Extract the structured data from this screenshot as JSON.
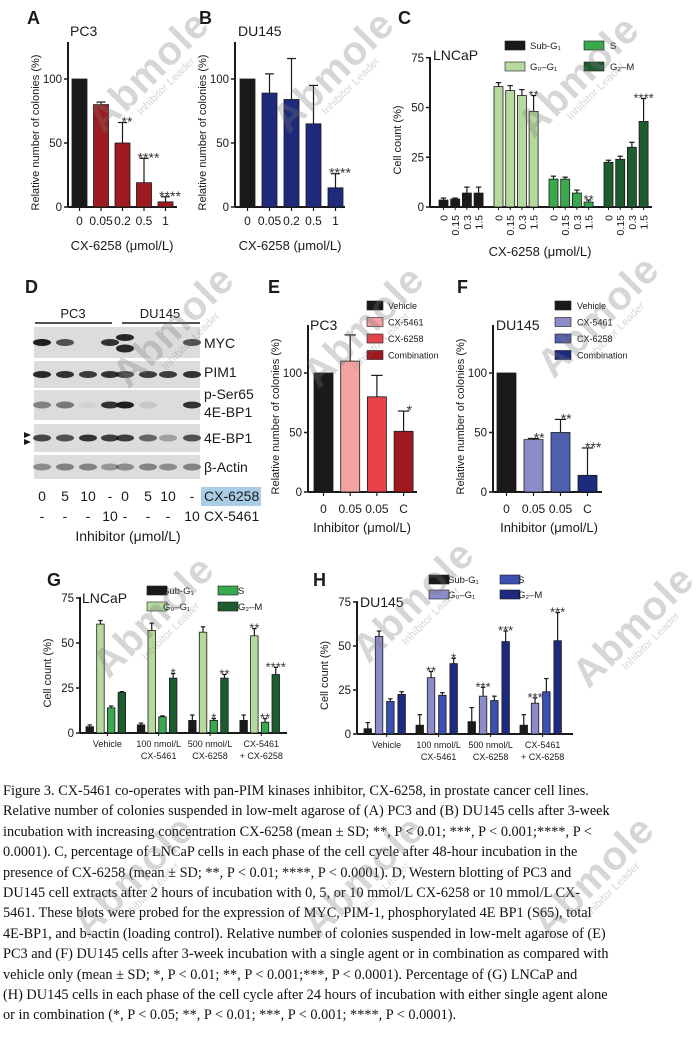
{
  "panel_letters": [
    "A",
    "B",
    "C",
    "D",
    "E",
    "F",
    "G",
    "H"
  ],
  "chart_data": [
    {
      "panel": "A",
      "type": "bar",
      "title": "PC3",
      "categories": [
        "0",
        "0.05",
        "0.2",
        "0.5",
        "1"
      ],
      "values": [
        100,
        80,
        50,
        19,
        4
      ],
      "errors": [
        0,
        2,
        16,
        19,
        4
      ],
      "colors": [
        "#1a1a1a",
        "#9e1b1f",
        "#9e1b1f",
        "#9e1b1f",
        "#9e1b1f"
      ],
      "significance": [
        "",
        "",
        "**",
        "****",
        "****"
      ],
      "ylabel": "Relative number of colonies (%)",
      "xlabel": "CX-6258 (μmol/L)",
      "yticks": [
        "0",
        "50",
        "100"
      ],
      "ylim": [
        0,
        130
      ]
    },
    {
      "panel": "B",
      "type": "bar",
      "title": "DU145",
      "categories": [
        "0",
        "0.05",
        "0.2",
        "0.5",
        "1"
      ],
      "values": [
        100,
        89,
        84,
        65,
        15
      ],
      "errors": [
        0,
        15,
        32,
        30,
        11
      ],
      "colors": [
        "#1a1a1a",
        "#1f2a7c",
        "#1f2a7c",
        "#1f2a7c",
        "#1f2a7c"
      ],
      "significance": [
        "",
        "",
        "",
        "",
        "****"
      ],
      "ylabel": "Relative number of colonies (%)",
      "xlabel": "CX-6258 (μmol/L)",
      "yticks": [
        "0",
        "50",
        "100"
      ],
      "ylim": [
        0,
        130
      ]
    },
    {
      "panel": "C",
      "type": "bar",
      "title": "LNCaP",
      "categories": [
        "0",
        "0.15",
        "0.3",
        "1.5"
      ],
      "series": [
        {
          "name": "Sub-G₁",
          "color": "#1a1a1a",
          "values": [
            3.5,
            4,
            7,
            7
          ],
          "errors": [
            1,
            0.5,
            3,
            3
          ],
          "significance": [
            "",
            "",
            "",
            ""
          ]
        },
        {
          "name": "G₀–G₁",
          "color": "#b6da9e",
          "values": [
            60.5,
            58.5,
            56,
            48
          ],
          "errors": [
            2,
            2.5,
            3,
            8
          ],
          "significance": [
            "",
            "",
            "",
            "**"
          ]
        },
        {
          "name": "S",
          "color": "#3aa84c",
          "values": [
            14,
            14,
            7,
            2.5
          ],
          "errors": [
            1.5,
            1,
            1.5,
            1
          ],
          "significance": [
            "",
            "",
            "",
            "**"
          ]
        },
        {
          "name": "G₂–M",
          "color": "#1d5c2e",
          "values": [
            22.5,
            24,
            30,
            43
          ],
          "errors": [
            1,
            1.5,
            2.5,
            11.5
          ],
          "significance": [
            "",
            "",
            "",
            "****"
          ]
        }
      ],
      "ylabel": "Cell count (%)",
      "xlabel": "CX-6258 (μmol/L)",
      "yticks": [
        "0",
        "25",
        "50",
        "75"
      ],
      "ylim": [
        0,
        75
      ]
    },
    {
      "panel": "E",
      "type": "bar",
      "title": "PC3",
      "categories": [
        "0",
        "0.05",
        "0.05",
        "C"
      ],
      "values": [
        100,
        110,
        80,
        51
      ],
      "errors": [
        0,
        22,
        18,
        17
      ],
      "colors": [
        "#1a1a1a",
        "#f4a3a3",
        "#e8424b",
        "#a0191f"
      ],
      "significance": [
        "",
        "",
        "",
        "*"
      ],
      "legend": [
        "Vehicle",
        "CX-5461",
        "CX-6258",
        "Combination"
      ],
      "ylabel": "Relative number of colonies (%)",
      "xlabel": "Inhibitor (μmol/L)",
      "yticks": [
        "0",
        "50",
        "100"
      ],
      "ylim": [
        0,
        140
      ]
    },
    {
      "panel": "F",
      "type": "bar",
      "title": "DU145",
      "categories": [
        "0",
        "0.05",
        "0.05",
        "C"
      ],
      "values": [
        100,
        44,
        50,
        14
      ],
      "errors": [
        0,
        1,
        11,
        23
      ],
      "colors": [
        "#1a1a1a",
        "#8b8cc9",
        "#4f5fb0",
        "#1c2a80"
      ],
      "significance": [
        "",
        "**",
        "**",
        "***"
      ],
      "legend": [
        "Vehicle",
        "CX-5461",
        "CX-6258",
        "Combination"
      ],
      "ylabel": "Relative number of colonies (%)",
      "xlabel": "Inhibitor (μmol/L)",
      "yticks": [
        "0",
        "50",
        "100"
      ],
      "ylim": [
        0,
        140
      ]
    },
    {
      "panel": "G",
      "type": "bar",
      "title": "LNCaP",
      "categories": [
        [
          "Vehicle"
        ],
        [
          "100 nmol/L",
          "CX-5461"
        ],
        [
          "500 nmol/L",
          "CX-6258"
        ],
        [
          "CX-5461",
          "+ CX-6258"
        ]
      ],
      "series": [
        {
          "name": "Sub-G₁",
          "color": "#1a1a1a",
          "values": [
            3.5,
            4.5,
            7,
            7
          ],
          "errors": [
            1,
            1,
            3,
            3
          ],
          "significance": [
            "",
            "",
            "",
            ""
          ]
        },
        {
          "name": "G₀–G₁",
          "color": "#b6da9e",
          "values": [
            60.5,
            57,
            56,
            54
          ],
          "errors": [
            2,
            4,
            3,
            4
          ],
          "significance": [
            "",
            "",
            "",
            "**"
          ]
        },
        {
          "name": "S",
          "color": "#3aa84c",
          "values": [
            14,
            9,
            7,
            6
          ],
          "errors": [
            1,
            0.5,
            1,
            2
          ],
          "significance": [
            "",
            "",
            "*",
            "**"
          ]
        },
        {
          "name": "G₂–M",
          "color": "#1d5c2e",
          "values": [
            22.5,
            30.5,
            30.5,
            32.5
          ],
          "errors": [
            0.5,
            2.5,
            2,
            4
          ],
          "significance": [
            "",
            "*",
            "**",
            "****"
          ]
        }
      ],
      "ylabel": "Cell count (%)",
      "yticks": [
        "0",
        "25",
        "50",
        "75"
      ],
      "ylim": [
        0,
        75
      ]
    },
    {
      "panel": "H",
      "type": "bar",
      "title": "DU145",
      "categories": [
        [
          "Vehicle"
        ],
        [
          "100 nmol/L",
          "CX-5461"
        ],
        [
          "500 nmol/L",
          "CX-6258"
        ],
        [
          "CX-5461",
          "+ CX-6258"
        ]
      ],
      "series": [
        {
          "name": "Sub-G₁",
          "color": "#1a1a1a",
          "values": [
            3,
            5,
            7,
            5
          ],
          "errors": [
            3.5,
            6,
            8,
            6
          ],
          "significance": [
            "",
            "",
            "",
            ""
          ]
        },
        {
          "name": "G₀–G₁",
          "color": "#8b8cc9",
          "values": [
            55.5,
            32,
            21.5,
            17.5
          ],
          "errors": [
            3,
            3.5,
            5,
            3
          ],
          "significance": [
            "",
            "**",
            "***",
            "***"
          ]
        },
        {
          "name": "S",
          "color": "#3a50b0",
          "values": [
            18.5,
            22,
            19,
            24
          ],
          "errors": [
            1.5,
            1.5,
            2.5,
            7.5
          ],
          "significance": [
            "",
            "",
            "",
            ""
          ]
        },
        {
          "name": "G₂–M",
          "color": "#1c2a80",
          "values": [
            22.5,
            40,
            52.5,
            53
          ],
          "errors": [
            1.5,
            3,
            6,
            16
          ],
          "significance": [
            "",
            "*",
            "***",
            "***"
          ]
        }
      ],
      "ylabel": "Cell count (%)",
      "yticks": [
        "0",
        "25",
        "50",
        "75"
      ],
      "ylim": [
        0,
        75
      ]
    }
  ],
  "western_blot": {
    "cell_lines": [
      "PC3",
      "DU145"
    ],
    "proteins": [
      "MYC",
      "PIM1",
      "p-Ser65",
      "4E-BP1",
      "4E-BP1",
      "β-Actin"
    ],
    "cx6258_label": "CX-6258",
    "cx5461_label": "CX-5461",
    "cx6258_doses": [
      "0",
      "5",
      "10",
      "-",
      "0",
      "5",
      "10",
      "-"
    ],
    "cx5461_doses": [
      "-",
      "-",
      "-",
      "10",
      "-",
      "-",
      "-",
      "10"
    ],
    "xlabel": "Inhibitor (μmol/L)",
    "highlight_color": "#a9cde6"
  },
  "caption_lines": [
    "Figure 3. CX-5461 co-operates with pan-PIM kinases inhibitor, CX-6258, in prostate cancer cell lines.",
    "Relative number of colonies suspended in low-melt agarose of (A) PC3 and (B) DU145 cells after 3-week",
    "incubation with increasing concentration CX-6258 (mean ± SD; **, P < 0.01; ***, P < 0.001;****, P <",
    "0.0001). C, percentage of LNCaP cells in each phase of the cell cycle after 48-hour incubation in the",
    "presence of CX-6258 (mean ± SD; **, P < 0.01; ****, P < 0.0001). D, Western blotting of PC3 and",
    "DU145 cell extracts after 2 hours of incubation with 0, 5, or 10 mmol/L CX-6258 or 10 mmol/L CX-",
    "5461. These blots were probed for the expression of MYC, PIM-1, phosphorylated 4E BP1 (S65), total",
    "4E-BP1, and b-actin (loading control). Relative number of colonies suspended in low-melt agarose of (E)",
    "PC3 and (F) DU145 cells after 3-week incubation with a single agent or in combination as compared with",
    "vehicle only (mean ± SD; *, P < 0.01; **, P < 0.001;***, P < 0.0001). Percentage of (G) LNCaP and",
    "(H) DU145 cells in each phase of the cell cycle after 24 hours of incubation with either single agent alone",
    "or in combination (*, P < 0.05; **, P < 0.01; ***, P < 0.001; ****, P < 0.0001)."
  ],
  "watermark": {
    "brand": "Abmole",
    "tagline": "Inhibitor Leader"
  }
}
